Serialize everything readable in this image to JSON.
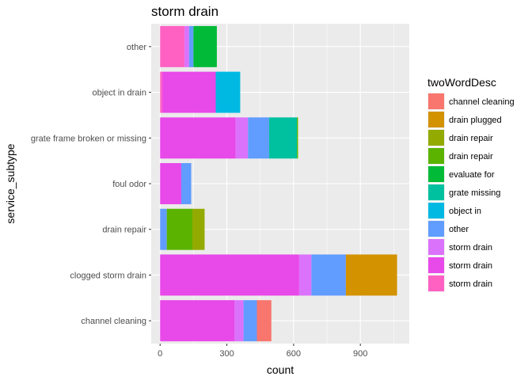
{
  "chart_data": {
    "type": "bar",
    "orientation": "horizontal",
    "stacked": true,
    "title": "storm drain",
    "xlabel": "count",
    "ylabel": "service_subtype",
    "xlim": [
      -40,
      1120
    ],
    "xticks": [
      0,
      300,
      600,
      900
    ],
    "grid": true,
    "legend_position": "right",
    "legend_title": "twoWordDesc",
    "categories": [
      "channel cleaning",
      "clogged storm drain",
      "drain repair",
      "foul odor",
      "grate frame broken or missing",
      "object in drain",
      "other"
    ],
    "series": [
      {
        "name": "channel cleaning",
        "color": "#F8766D",
        "values": [
          65,
          0,
          0,
          0,
          0,
          0,
          0
        ]
      },
      {
        "name": "drain plugged",
        "color": "#D39200",
        "values": [
          0,
          230,
          0,
          0,
          0,
          0,
          0
        ]
      },
      {
        "name": "drain repair",
        "color": "#93AA00",
        "values": [
          0,
          0,
          55,
          0,
          0,
          0,
          0
        ]
      },
      {
        "name": "drain repair",
        "color": "#5BB300",
        "values": [
          0,
          0,
          115,
          0,
          5,
          0,
          0
        ]
      },
      {
        "name": "evaluate for",
        "color": "#00BA38",
        "values": [
          0,
          0,
          0,
          0,
          0,
          0,
          105
        ]
      },
      {
        "name": "grate missing",
        "color": "#00C19F",
        "values": [
          0,
          0,
          0,
          0,
          125,
          0,
          0
        ]
      },
      {
        "name": "object in",
        "color": "#00B9E3",
        "values": [
          0,
          0,
          0,
          0,
          0,
          110,
          0
        ]
      },
      {
        "name": "other",
        "color": "#619CFF",
        "values": [
          60,
          155,
          30,
          45,
          95,
          0,
          20
        ]
      },
      {
        "name": "storm drain",
        "color": "#DB72FB",
        "values": [
          40,
          55,
          0,
          0,
          55,
          0,
          20
        ]
      },
      {
        "name": "storm drain",
        "color": "#E849E9",
        "values": [
          335,
          625,
          0,
          95,
          340,
          240,
          0
        ]
      },
      {
        "name": "storm drain",
        "color": "#FF61C3",
        "values": [
          0,
          0,
          0,
          0,
          0,
          10,
          110
        ]
      }
    ]
  }
}
